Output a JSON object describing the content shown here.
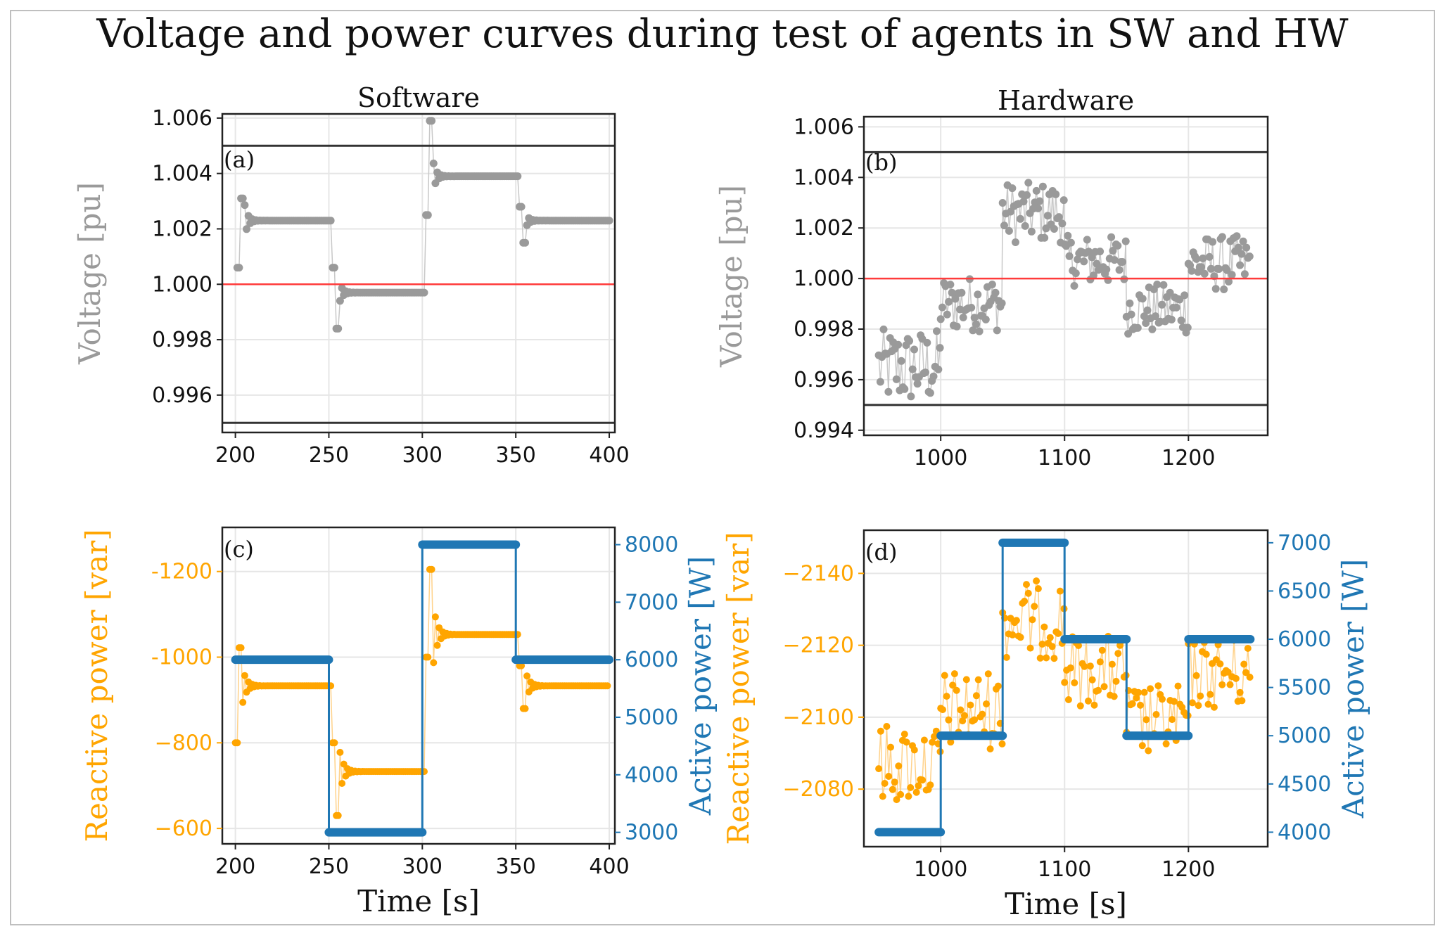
{
  "title": "Voltage and power curves during test of agents in SW and HW",
  "colors": {
    "voltage": "#9a9a9a",
    "reactive": "#ffa500",
    "active": "#1f77b4",
    "ref": "#ff3b3b",
    "limit": "#333333",
    "grid": "#e6e6e6"
  },
  "chart_data": [
    {
      "type": "scatter",
      "panel_label": "(a)",
      "title": "Software",
      "xlabel": "",
      "ylabel": "Voltage  [pu]",
      "xlim": [
        193,
        403
      ],
      "ylim": [
        0.99465,
        1.00615
      ],
      "xticks": [
        200,
        250,
        300,
        350,
        400
      ],
      "xtick_labels": [
        "200",
        "250",
        "300",
        "350",
        "400"
      ],
      "yticks": [
        0.996,
        0.998,
        1.0,
        1.002,
        1.004,
        1.006
      ],
      "ytick_labels": [
        "0.996",
        "0.998",
        "1.000",
        "1.002",
        "1.004",
        "1.006"
      ],
      "reference_line": 1.0,
      "limit_lines": [
        0.995,
        1.005
      ],
      "segments": [
        {
          "start": 201,
          "end": 252,
          "initial": 1.0006,
          "final": 1.0023,
          "overshoot": 1.0031
        },
        {
          "start": 252,
          "end": 302,
          "initial": 1.0006,
          "final": 0.9997,
          "overshoot": 0.9984
        },
        {
          "start": 302,
          "end": 352,
          "initial": 1.0025,
          "final": 1.0039,
          "overshoot": 1.0059
        },
        {
          "start": 352,
          "end": 401,
          "initial": 1.0028,
          "final": 1.0023,
          "overshoot": 1.0015
        }
      ]
    },
    {
      "type": "scatter",
      "panel_label": "(b)",
      "title": "Hardware",
      "xlabel": "",
      "ylabel": "Voltage  [pu]",
      "xlim": [
        938,
        1264
      ],
      "ylim": [
        0.9938,
        1.0064
      ],
      "xticks": [
        1000,
        1100,
        1200
      ],
      "xtick_labels": [
        "1000",
        "1100",
        "1200"
      ],
      "yticks": [
        0.994,
        0.996,
        0.998,
        1.0,
        1.002,
        1.004,
        1.006
      ],
      "ytick_labels": [
        "0.994",
        "0.996",
        "0.998",
        "1.000",
        "1.002",
        "1.004",
        "1.006"
      ],
      "reference_line": 1.0,
      "limit_lines": [
        0.995,
        1.005
      ],
      "segments": [
        {
          "start": 950,
          "end": 1000,
          "mean": 0.9965,
          "spread": 0.0015
        },
        {
          "start": 1000,
          "end": 1050,
          "mean": 0.999,
          "spread": 0.0011
        },
        {
          "start": 1050,
          "end": 1100,
          "mean": 1.0026,
          "spread": 0.0012
        },
        {
          "start": 1100,
          "end": 1150,
          "mean": 1.0007,
          "spread": 0.001
        },
        {
          "start": 1150,
          "end": 1200,
          "mean": 0.9988,
          "spread": 0.001
        },
        {
          "start": 1200,
          "end": 1250,
          "mean": 1.0006,
          "spread": 0.0011
        }
      ]
    },
    {
      "type": "line",
      "panel_label": "(c)",
      "xlabel": "Time [s]",
      "ylabel_left": "Reactive power [var]",
      "ylabel_right": "Active power [W]",
      "xlim": [
        193,
        403
      ],
      "ylim_left": [
        -564,
        -1303
      ],
      "ylim_right": [
        2800,
        8300
      ],
      "xticks": [
        200,
        250,
        300,
        350,
        400
      ],
      "xtick_labels": [
        "200",
        "250",
        "300",
        "350",
        "400"
      ],
      "yticks_left": [
        -600,
        -800,
        -1000,
        -1200
      ],
      "ytick_labels_left": [
        "−600",
        "−800",
        "-1000",
        "-1200"
      ],
      "yticks_right": [
        3000,
        4000,
        5000,
        6000,
        7000,
        8000
      ],
      "ytick_labels_right": [
        "3000",
        "4000",
        "5000",
        "6000",
        "7000",
        "8000"
      ],
      "active_power": [
        {
          "start": 200,
          "end": 250,
          "value": 6000
        },
        {
          "start": 250,
          "end": 300,
          "value": 3000
        },
        {
          "start": 300,
          "end": 350,
          "value": 8000
        },
        {
          "start": 350,
          "end": 400,
          "value": 6000
        }
      ],
      "reactive_segments": [
        {
          "start": 200,
          "end": 252,
          "initial": -800,
          "final": -933,
          "overshoot": -1022
        },
        {
          "start": 252,
          "end": 302,
          "initial": -800,
          "final": -733,
          "overshoot": -630
        },
        {
          "start": 302,
          "end": 352,
          "initial": -1000,
          "final": -1053,
          "overshoot": -1205
        },
        {
          "start": 352,
          "end": 400,
          "initial": -980,
          "final": -933,
          "overshoot": -880
        }
      ]
    },
    {
      "type": "line",
      "panel_label": "(d)",
      "xlabel": "Time [s]",
      "ylabel_left": "Reactive power [var]",
      "ylabel_right": "Active power [W]",
      "xlim": [
        938,
        1264
      ],
      "ylim_left": [
        -2064,
        -2152
      ],
      "ylim_right": [
        3850,
        7130
      ],
      "xticks": [
        1000,
        1100,
        1200
      ],
      "xtick_labels": [
        "1000",
        "1100",
        "1200"
      ],
      "yticks_left": [
        -2080,
        -2100,
        -2120,
        -2140
      ],
      "ytick_labels_left": [
        "−2080",
        "−2100",
        "−2120",
        "−2140"
      ],
      "yticks_right": [
        4000,
        4500,
        5000,
        5500,
        6000,
        6500,
        7000
      ],
      "ytick_labels_right": [
        "4000",
        "4500",
        "5000",
        "5500",
        "6000",
        "6500",
        "7000"
      ],
      "active_power": [
        {
          "start": 950,
          "end": 1000,
          "value": 4000
        },
        {
          "start": 1000,
          "end": 1050,
          "value": 5000
        },
        {
          "start": 1050,
          "end": 1100,
          "value": 7000
        },
        {
          "start": 1100,
          "end": 1150,
          "value": 6000
        },
        {
          "start": 1150,
          "end": 1200,
          "value": 5000
        },
        {
          "start": 1200,
          "end": 1250,
          "value": 6000
        }
      ],
      "reactive_segments": [
        {
          "start": 950,
          "end": 1000,
          "mean": -2087,
          "spread": 11
        },
        {
          "start": 1000,
          "end": 1050,
          "mean": -2102,
          "spread": 11
        },
        {
          "start": 1050,
          "end": 1100,
          "mean": -2127,
          "spread": 11
        },
        {
          "start": 1100,
          "end": 1150,
          "mean": -2113,
          "spread": 10
        },
        {
          "start": 1150,
          "end": 1200,
          "mean": -2099,
          "spread": 10
        },
        {
          "start": 1200,
          "end": 1250,
          "mean": -2112,
          "spread": 10
        }
      ]
    }
  ]
}
